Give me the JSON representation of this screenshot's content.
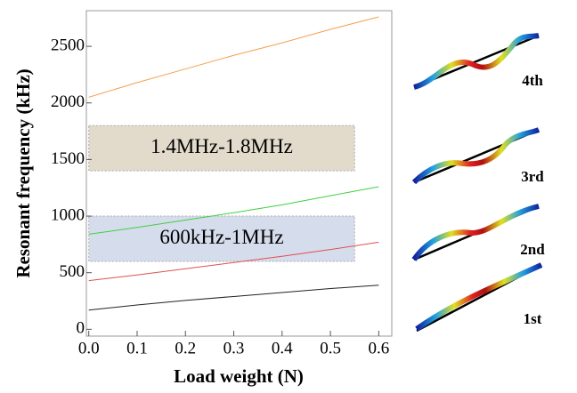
{
  "chart_data": {
    "type": "line",
    "x_label": "Load weight (N)",
    "y_label": "Resonant frequency (kHz)",
    "x": [
      0,
      0.1,
      0.2,
      0.3,
      0.4,
      0.5,
      0.6
    ],
    "series": [
      {
        "color": "#222222",
        "values": [
          170,
          215,
          255,
          290,
          325,
          360,
          390
        ]
      },
      {
        "color": "#e05050",
        "values": [
          430,
          480,
          535,
          590,
          645,
          705,
          770
        ]
      },
      {
        "color": "#40d040",
        "values": [
          840,
          900,
          965,
          1030,
          1100,
          1180,
          1260
        ]
      },
      {
        "color": "#f5a050",
        "values": [
          2050,
          2180,
          2300,
          2420,
          2530,
          2650,
          2760
        ]
      }
    ],
    "bands": [
      {
        "label": "1.4MHz-1.8MHz",
        "ymin": 1400,
        "ymax": 1800,
        "xmin": 0,
        "xmax": 0.55,
        "color": "#e2dacb"
      },
      {
        "label": "600kHz-1MHz",
        "ymin": 600,
        "ymax": 1000,
        "xmin": 0,
        "xmax": 0.55,
        "color": "#d5dcec"
      }
    ],
    "xlim": [
      -0.005,
      0.627
    ],
    "ylim": [
      -60,
      2815
    ],
    "xticks": [
      {
        "value": 0,
        "label": "0.0"
      },
      0.1,
      0.2,
      0.3,
      0.4,
      0.5,
      0.6
    ],
    "yticks": [
      0,
      500,
      1000,
      1500,
      2000,
      2500
    ],
    "mode_labels": [
      "4th",
      "3rd",
      "2nd",
      "1st"
    ]
  }
}
